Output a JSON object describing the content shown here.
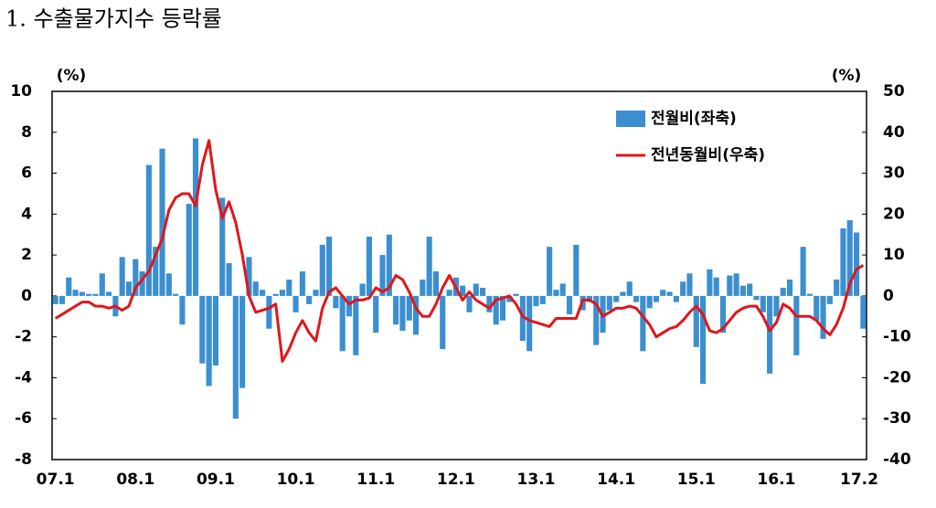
{
  "chart_data": {
    "type": "bar_line",
    "title": "1. 수출물가지수 등락률",
    "y_unit": "(%)",
    "y2_unit": "(%)",
    "categories": [
      "07.1",
      null,
      null,
      null,
      null,
      null,
      null,
      null,
      null,
      null,
      null,
      null,
      "08.1",
      null,
      null,
      null,
      null,
      null,
      null,
      null,
      null,
      null,
      null,
      null,
      "09.1",
      null,
      null,
      null,
      null,
      null,
      null,
      null,
      null,
      null,
      null,
      null,
      "10.1",
      null,
      null,
      null,
      null,
      null,
      null,
      null,
      null,
      null,
      null,
      null,
      "11.1",
      null,
      null,
      null,
      null,
      null,
      null,
      null,
      null,
      null,
      null,
      null,
      "12.1",
      null,
      null,
      null,
      null,
      null,
      null,
      null,
      null,
      null,
      null,
      null,
      "13.1",
      null,
      null,
      null,
      null,
      null,
      null,
      null,
      null,
      null,
      null,
      null,
      "14.1",
      null,
      null,
      null,
      null,
      null,
      null,
      null,
      null,
      null,
      null,
      null,
      "15.1",
      null,
      null,
      null,
      null,
      null,
      null,
      null,
      null,
      null,
      null,
      null,
      "16.1",
      null,
      null,
      null,
      null,
      null,
      null,
      null,
      null,
      null,
      null,
      null,
      null,
      "17.2"
    ],
    "series": [
      {
        "name": "전월비(좌축)",
        "type": "bar",
        "color": "#3b8fd1",
        "values": [
          -0.4,
          -0.4,
          0.9,
          0.3,
          0.2,
          0.1,
          0.1,
          1.1,
          0.2,
          -1.0,
          1.9,
          0.7,
          1.8,
          1.2,
          6.4,
          2.4,
          7.2,
          1.1,
          0.1,
          -1.4,
          4.5,
          7.7,
          -3.3,
          -4.4,
          -3.4,
          4.8,
          1.6,
          -6.0,
          -4.5,
          1.9,
          0.7,
          0.3,
          -1.6,
          0.1,
          0.3,
          0.8,
          -0.8,
          1.2,
          -0.4,
          0.3,
          2.5,
          2.9,
          -0.6,
          -2.7,
          -1.0,
          -2.9,
          0.6,
          2.9,
          -1.8,
          2.0,
          3.0,
          -1.4,
          -1.7,
          -1.2,
          -1.9,
          0.8,
          2.9,
          1.2,
          -2.6,
          0.3,
          0.9,
          0.5,
          -0.8,
          0.6,
          0.4,
          -0.8,
          -1.4,
          -1.2,
          -0.3,
          0.1,
          -2.2,
          -2.7,
          -0.5,
          -0.4,
          2.4,
          0.3,
          0.6,
          -0.9,
          2.5,
          -0.7,
          -0.3,
          -2.4,
          -1.8,
          -0.7,
          -0.3,
          0.2,
          0.7,
          -0.3,
          -2.7,
          -0.6,
          -0.3,
          0.3,
          0.2,
          -0.3,
          0.7,
          1.1,
          -2.5,
          -4.3,
          1.3,
          0.9,
          -1.8,
          1.0,
          1.1,
          0.5,
          0.6,
          -0.2,
          -0.8,
          -3.8,
          -1.0,
          0.4,
          0.8,
          -2.9,
          2.4,
          0.1,
          -1.2,
          -2.1,
          -0.4,
          0.8,
          3.3,
          3.7,
          3.1,
          -1.6
        ]
      },
      {
        "name": "전년동월비(우축)",
        "type": "line",
        "axis": "y2",
        "color": "#e0161b",
        "values": [
          -5.5,
          -4.5,
          -3.5,
          -2.5,
          -1.5,
          -1.5,
          -2.5,
          -2.5,
          -3,
          -2.5,
          -3.5,
          -2.5,
          2,
          4,
          6,
          10,
          14,
          21,
          24,
          25,
          25,
          22,
          32,
          38,
          26,
          19,
          23,
          18,
          10,
          0,
          -4,
          -3.5,
          -3,
          -2,
          -16,
          -13,
          -9,
          -6,
          -9,
          -11,
          -3,
          1,
          2,
          0,
          -2,
          -1,
          -1,
          -0.5,
          2,
          1,
          2,
          5,
          4,
          1,
          -3,
          -5,
          -5,
          -2,
          2,
          5,
          2,
          -1,
          1,
          -1,
          -2,
          -3,
          -1,
          -0.5,
          0,
          -2,
          -5,
          -6,
          -6.5,
          -7,
          -7.5,
          -5.5,
          -5.5,
          -5.5,
          -5.5,
          -1,
          -1,
          -2,
          -5,
          -4,
          -3,
          -3,
          -2.5,
          -3,
          -5,
          -7,
          -10,
          -9,
          -8,
          -7.5,
          -6,
          -4,
          -2.5,
          -4.5,
          -8.5,
          -9,
          -8,
          -6,
          -4,
          -3,
          -2.5,
          -2.5,
          -5,
          -8.5,
          -6.5,
          -2,
          -3,
          -5,
          -5,
          -5,
          -6,
          -8,
          -9.5,
          -7,
          -3,
          3,
          6.5,
          7.5
        ]
      }
    ],
    "ylim": [
      -8,
      10
    ],
    "yticks": [
      -8,
      -6,
      -4,
      -2,
      0,
      2,
      4,
      6,
      8,
      10
    ],
    "y2lim": [
      -40,
      50
    ],
    "y2ticks": [
      -40,
      -30,
      -20,
      -10,
      0,
      10,
      20,
      30,
      40,
      50
    ]
  }
}
